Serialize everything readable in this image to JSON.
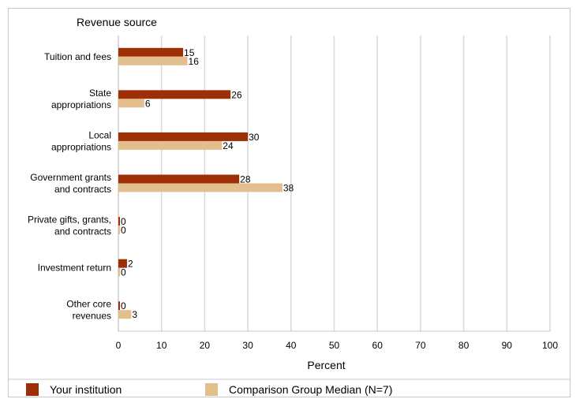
{
  "chart_data": {
    "type": "bar",
    "orientation": "horizontal",
    "title": "Revenue source",
    "xlabel": "Percent",
    "xlim": [
      0,
      100
    ],
    "xticks": [
      0,
      10,
      20,
      30,
      40,
      50,
      60,
      70,
      80,
      90,
      100
    ],
    "categories": [
      [
        "Tuition and fees"
      ],
      [
        "State",
        "appropriations"
      ],
      [
        "Local",
        "appropriations"
      ],
      [
        "Government grants",
        "and contracts"
      ],
      [
        "Private gifts, grants,",
        "and contracts"
      ],
      [
        "Investment return"
      ],
      [
        "Other core",
        "revenues"
      ]
    ],
    "series": [
      {
        "name": "Your institution",
        "color": "#9c2f05",
        "values": [
          15,
          26,
          30,
          28,
          0,
          2,
          0
        ]
      },
      {
        "name": "Comparison Group Median (N=7)",
        "color": "#e3bf8d",
        "values": [
          16,
          6,
          24,
          38,
          0,
          0,
          3
        ]
      }
    ],
    "grid": true,
    "legend": "bottom"
  }
}
